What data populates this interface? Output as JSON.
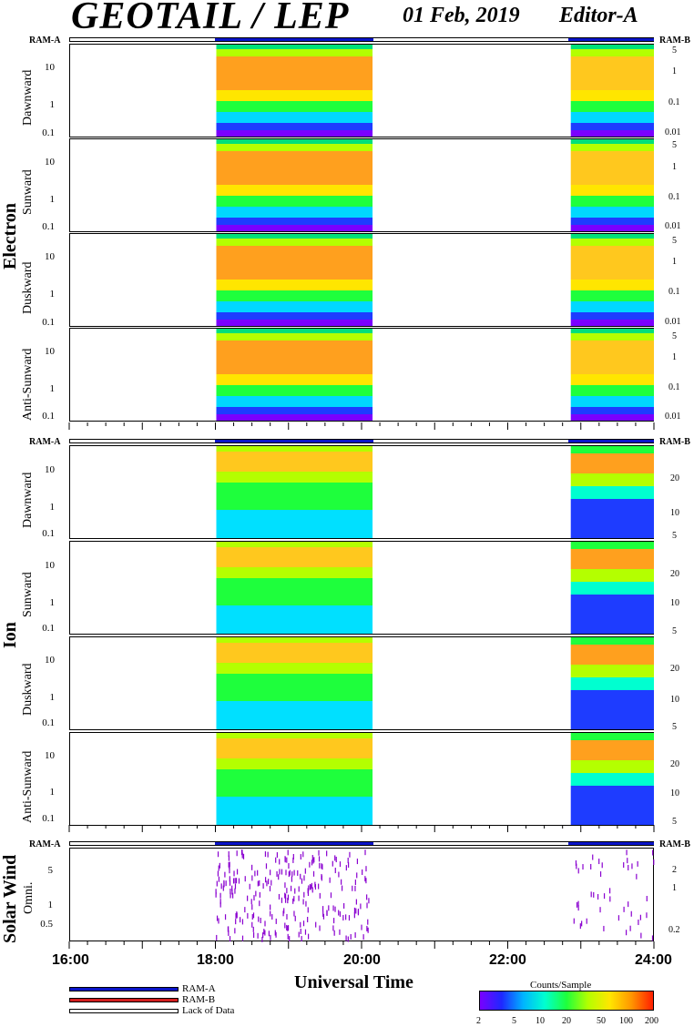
{
  "header": {
    "title": "GEOTAIL / LEP",
    "date": "01 Feb, 2019",
    "editor": "Editor-A"
  },
  "colors": {
    "ram_a": "#0a14c8",
    "ram_b": "#d21e1e",
    "lack": "#ffffff"
  },
  "ram_labels": {
    "left": "RAM-A",
    "right": "RAM-B"
  },
  "groups": [
    {
      "label": "Electron",
      "panels": [
        "Dawnward",
        "Sunward",
        "Duskward",
        "Anti-Sunward"
      ]
    },
    {
      "label": "Ion",
      "panels": [
        "Dawnward",
        "Sunward",
        "Duskward",
        "Anti-Sunward"
      ]
    },
    {
      "label": "Solar Wind",
      "panels": [
        "Omni."
      ]
    }
  ],
  "x_axis": {
    "title": "Universal Time",
    "ticks": [
      "16:00",
      "18:00",
      "20:00",
      "22:00",
      "24:00"
    ]
  },
  "legend": {
    "items": [
      "RAM-A",
      "RAM-B",
      "Lack of Data"
    ]
  },
  "colorbar": {
    "title": "Counts/Sample",
    "ticks": [
      "2",
      "5",
      "10",
      "20",
      "50",
      "100",
      "200"
    ]
  },
  "chart_data": {
    "type": "heatmap",
    "x_range_hours": [
      16,
      24
    ],
    "data_intervals_hours": [
      [
        18.0,
        20.15
      ],
      [
        22.85,
        24.0
      ]
    ],
    "electron_left_ticks": [
      "10",
      "1",
      "0.1"
    ],
    "electron_right_ticks": [
      "5",
      "1",
      "0.1",
      "0.01"
    ],
    "ion_left_ticks": [
      "10",
      "1",
      "0.1"
    ],
    "ion_right_ticks": [
      "20",
      "10",
      "5"
    ],
    "sw_left_ticks": [
      "5",
      "1",
      "0.5"
    ],
    "sw_right_ticks": [
      "2",
      "1",
      "0.2"
    ],
    "color_scale": {
      "min": 2,
      "max": 200,
      "log": true
    }
  }
}
